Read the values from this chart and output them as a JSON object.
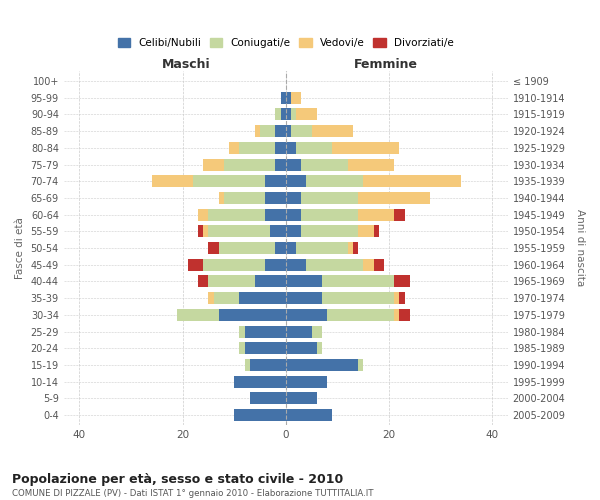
{
  "age_groups": [
    "100+",
    "95-99",
    "90-94",
    "85-89",
    "80-84",
    "75-79",
    "70-74",
    "65-69",
    "60-64",
    "55-59",
    "50-54",
    "45-49",
    "40-44",
    "35-39",
    "30-34",
    "25-29",
    "20-24",
    "15-19",
    "10-14",
    "5-9",
    "0-4"
  ],
  "birth_years": [
    "≤ 1909",
    "1910-1914",
    "1915-1919",
    "1920-1924",
    "1925-1929",
    "1930-1934",
    "1935-1939",
    "1940-1944",
    "1945-1949",
    "1950-1954",
    "1955-1959",
    "1960-1964",
    "1965-1969",
    "1970-1974",
    "1975-1979",
    "1980-1984",
    "1985-1989",
    "1990-1994",
    "1995-1999",
    "2000-2004",
    "2005-2009"
  ],
  "male": {
    "celibi": [
      0,
      1,
      1,
      2,
      2,
      2,
      4,
      4,
      4,
      3,
      2,
      4,
      6,
      9,
      13,
      8,
      8,
      7,
      10,
      7,
      10
    ],
    "coniugati": [
      0,
      0,
      1,
      3,
      7,
      10,
      14,
      8,
      11,
      12,
      11,
      12,
      9,
      5,
      8,
      1,
      1,
      1,
      0,
      0,
      0
    ],
    "vedovi": [
      0,
      0,
      0,
      1,
      2,
      4,
      8,
      1,
      2,
      1,
      0,
      0,
      0,
      1,
      0,
      0,
      0,
      0,
      0,
      0,
      0
    ],
    "divorziati": [
      0,
      0,
      0,
      0,
      0,
      0,
      0,
      0,
      0,
      1,
      2,
      3,
      2,
      0,
      0,
      0,
      0,
      0,
      0,
      0,
      0
    ]
  },
  "female": {
    "nubili": [
      0,
      1,
      1,
      1,
      2,
      3,
      4,
      3,
      3,
      3,
      2,
      4,
      7,
      7,
      8,
      5,
      6,
      14,
      8,
      6,
      9
    ],
    "coniugate": [
      0,
      0,
      1,
      4,
      7,
      9,
      11,
      11,
      11,
      11,
      10,
      11,
      14,
      14,
      13,
      2,
      1,
      1,
      0,
      0,
      0
    ],
    "vedove": [
      0,
      2,
      4,
      8,
      13,
      9,
      19,
      14,
      7,
      3,
      1,
      2,
      0,
      1,
      1,
      0,
      0,
      0,
      0,
      0,
      0
    ],
    "divorziate": [
      0,
      0,
      0,
      0,
      0,
      0,
      0,
      0,
      2,
      1,
      1,
      2,
      3,
      1,
      2,
      0,
      0,
      0,
      0,
      0,
      0
    ]
  },
  "colors": {
    "celibi": "#4472a8",
    "coniugati": "#c5d8a0",
    "vedovi": "#f5c97a",
    "divorziati": "#c0312e"
  },
  "title": "Popolazione per età, sesso e stato civile - 2010",
  "subtitle": "COMUNE DI PIZZALE (PV) - Dati ISTAT 1° gennaio 2010 - Elaborazione TUTTITALIA.IT",
  "xlabel_left": "Maschi",
  "xlabel_right": "Femmine",
  "ylabel_left": "Fasce di età",
  "ylabel_right": "Anni di nascita",
  "xlim": 43,
  "legend_labels": [
    "Celibi/Nubili",
    "Coniugati/e",
    "Vedovi/e",
    "Divorziati/e"
  ],
  "background_color": "#ffffff",
  "grid_color": "#cccccc"
}
